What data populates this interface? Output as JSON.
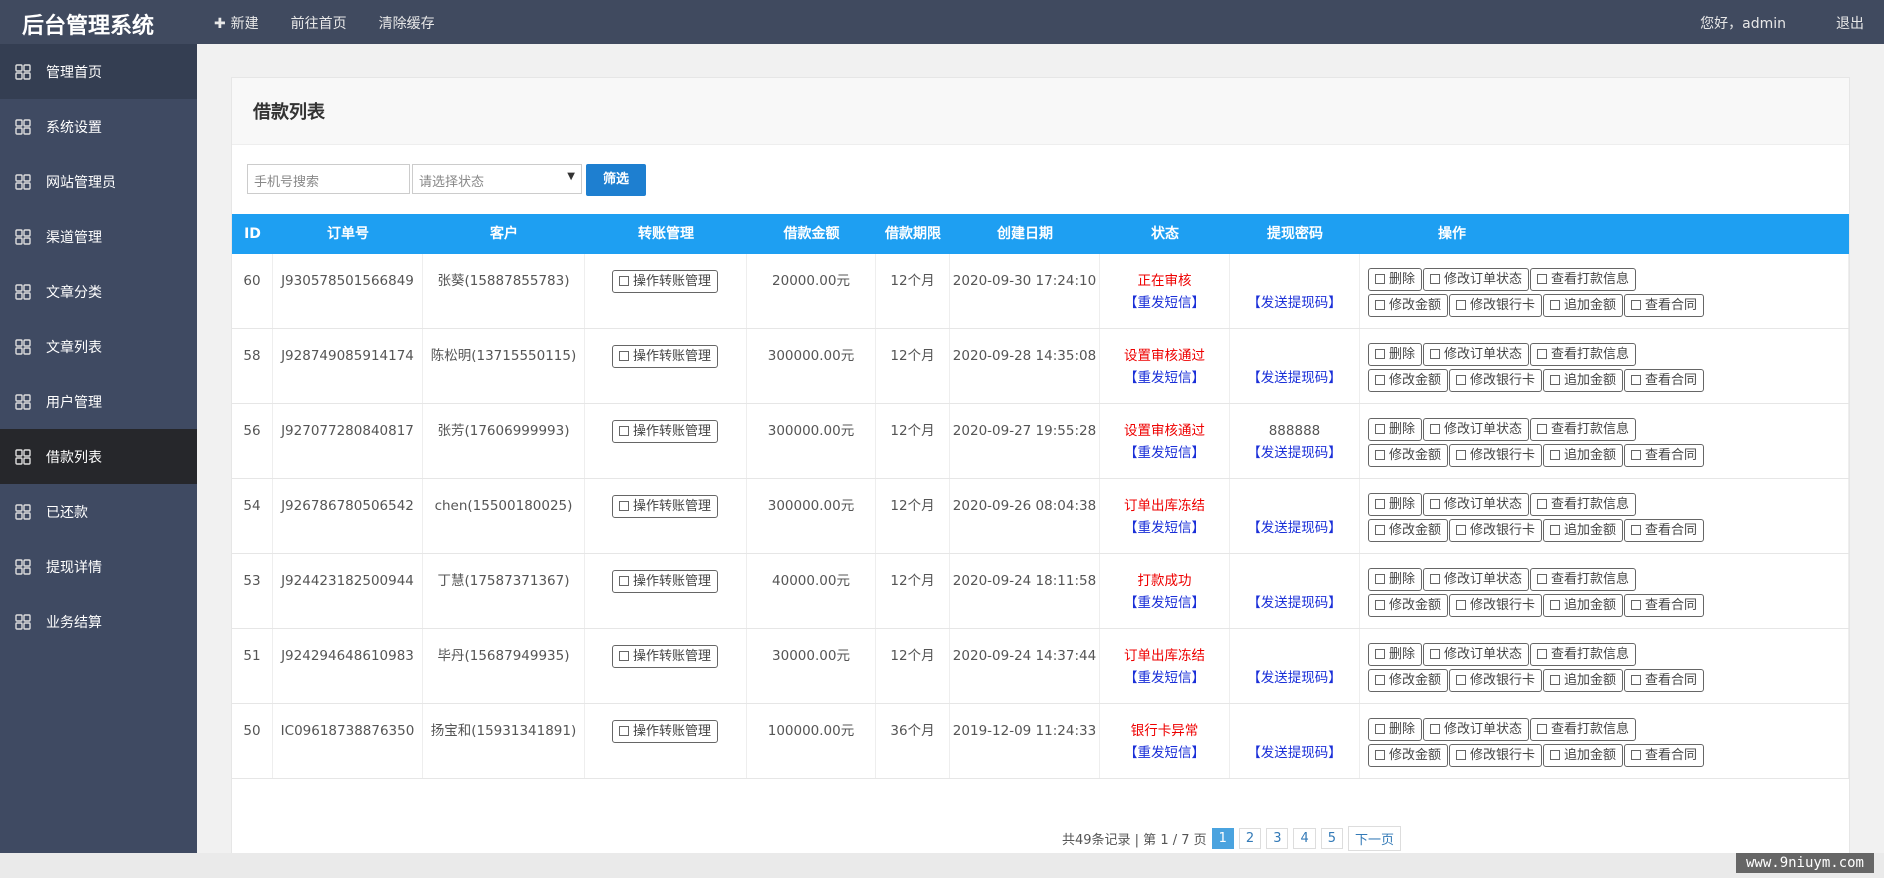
{
  "header": {
    "brand": "后台管理系统",
    "nav": [
      "新建",
      "前往首页",
      "清除缓存"
    ],
    "greeting": "您好，admin",
    "logout": "退出"
  },
  "sidebar": [
    "管理首页",
    "系统设置",
    "网站管理员",
    "渠道管理",
    "文章分类",
    "文章列表",
    "用户管理",
    "借款列表",
    "已还款",
    "提现详情",
    "业务结算"
  ],
  "panel": {
    "title": "借款列表"
  },
  "filter": {
    "phone_placeholder": "手机号搜索",
    "status_placeholder": "请选择状态",
    "submit": "筛选"
  },
  "table": {
    "columns": [
      "ID",
      "订单号",
      "客户",
      "转账管理",
      "借款金额",
      "借款期限",
      "创建日期",
      "状态",
      "提现密码",
      "操作"
    ],
    "transfer_button": "操作转账管理",
    "resend": "【重发短信】",
    "send_code": "【发送提现码】",
    "actions": [
      "删除",
      "修改订单状态",
      "查看打款信息",
      "修改金额",
      "修改银行卡",
      "追加金额",
      "查看合同"
    ],
    "rows": [
      {
        "id": "60",
        "order": "J930578501566849",
        "customer": "张葵(15887855783)",
        "amount": "20000.00元",
        "term": "12个月",
        "date": "2020-09-30 17:24:10",
        "status": "正在审核"
      },
      {
        "id": "58",
        "order": "J928749085914174",
        "customer": "陈松明(13715550115)",
        "amount": "300000.00元",
        "term": "12个月",
        "date": "2020-09-28 14:35:08",
        "status": "设置审核通过"
      },
      {
        "id": "56",
        "order": "J927077280840817",
        "customer": "张芳(17606999993)",
        "amount": "300000.00元",
        "term": "12个月",
        "date": "2020-09-27 19:55:28",
        "status": "设置审核通过",
        "password": "888888"
      },
      {
        "id": "54",
        "order": "J926786780506542",
        "customer": "chen(15500180025)",
        "amount": "300000.00元",
        "term": "12个月",
        "date": "2020-09-26 08:04:38",
        "status": "订单出库冻结"
      },
      {
        "id": "53",
        "order": "J924423182500944",
        "customer": "丁慧(17587371367)",
        "amount": "40000.00元",
        "term": "12个月",
        "date": "2020-09-24 18:11:58",
        "status": "打款成功"
      },
      {
        "id": "51",
        "order": "J924294648610983",
        "customer": "毕丹(15687949935)",
        "amount": "30000.00元",
        "term": "12个月",
        "date": "2020-09-24 14:37:44",
        "status": "订单出库冻结"
      },
      {
        "id": "50",
        "order": "IC09618738876350",
        "customer": "扬宝和(15931341891)",
        "amount": "100000.00元",
        "term": "36个月",
        "date": "2019-12-09 11:24:33",
        "status": "银行卡异常"
      }
    ]
  },
  "pagination": {
    "summary": "共49条记录 | 第 1 / 7 页",
    "pages": [
      "1",
      "2",
      "3",
      "4",
      "5"
    ],
    "next": "下一页"
  },
  "watermark": "www.9niuym.com"
}
